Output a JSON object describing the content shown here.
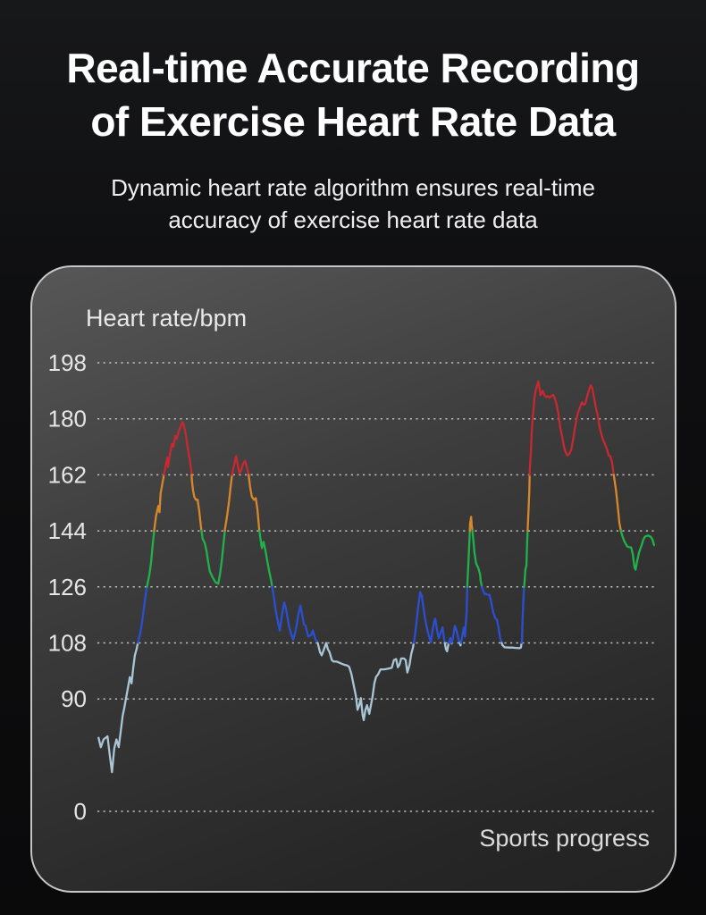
{
  "hero": {
    "title_line1": "Real-time Accurate Recording",
    "title_line2": "of Exercise Heart Rate Data",
    "subtitle_line1": "Dynamic heart rate algorithm ensures real-time",
    "subtitle_line2": "accuracy of exercise heart rate data"
  },
  "panel": {
    "y_axis_label": "Heart rate/bpm",
    "x_axis_label": "Sports progress",
    "border_color": "#d6d6d6",
    "gridline_color": "#d8d8d8",
    "tick_color": "#e6e6e6",
    "background_top": "#575757",
    "background_bottom": "#222222"
  },
  "chart_data": {
    "type": "line",
    "title": "Heart rate/bpm",
    "xlabel": "Sports progress",
    "ylabel": "Heart rate/bpm",
    "series_name": "exercise-heart-rate",
    "grid": "dotted-horizontal",
    "legend": "none",
    "y_ticks": [
      198,
      180,
      162,
      144,
      126,
      108,
      90,
      0
    ],
    "y_axis_break_between": [
      90,
      0
    ],
    "x_range_percent": [
      0,
      100
    ],
    "zones": [
      {
        "label": "below 108 bpm",
        "max": 108,
        "color": "#a9c6d6"
      },
      {
        "label": "108-126 bpm",
        "max": 126,
        "color": "#2c4fd2"
      },
      {
        "label": "126-144 bpm",
        "max": 144,
        "color": "#20b24b"
      },
      {
        "label": "144-162 bpm",
        "max": 162,
        "color": "#d8872a"
      },
      {
        "label": "above 162 bpm",
        "max": null,
        "color": "#c8282f"
      }
    ],
    "points": [
      [
        0.2,
        77.5
      ],
      [
        0.6,
        74.5
      ],
      [
        1.1,
        77
      ],
      [
        1.8,
        78
      ],
      [
        2.2,
        72
      ],
      [
        2.6,
        66.5
      ],
      [
        3.0,
        74
      ],
      [
        3.4,
        77
      ],
      [
        3.8,
        74.5
      ],
      [
        4.2,
        80
      ],
      [
        4.5,
        84.5
      ],
      [
        4.8,
        87
      ],
      [
        5.1,
        90
      ],
      [
        5.4,
        93
      ],
      [
        5.8,
        97
      ],
      [
        6.1,
        95
      ],
      [
        6.4,
        100
      ],
      [
        6.7,
        104
      ],
      [
        7.0,
        106
      ],
      [
        7.3,
        108.5
      ],
      [
        7.7,
        111.5
      ],
      [
        8.0,
        115
      ],
      [
        8.3,
        119
      ],
      [
        8.6,
        123
      ],
      [
        8.9,
        126.5
      ],
      [
        9.3,
        130
      ],
      [
        9.6,
        134
      ],
      [
        9.9,
        140
      ],
      [
        10.2,
        145
      ],
      [
        10.5,
        149
      ],
      [
        10.9,
        152
      ],
      [
        11.1,
        150
      ],
      [
        11.3,
        156
      ],
      [
        11.7,
        160
      ],
      [
        12.0,
        163
      ],
      [
        12.3,
        166
      ],
      [
        12.5,
        167.5
      ],
      [
        12.6,
        164.5
      ],
      [
        12.9,
        168
      ],
      [
        13.3,
        172
      ],
      [
        13.6,
        171
      ],
      [
        13.9,
        174.5
      ],
      [
        14.2,
        173.5
      ],
      [
        14.5,
        176
      ],
      [
        14.9,
        177.5
      ],
      [
        15.2,
        179
      ],
      [
        15.5,
        177.5
      ],
      [
        15.8,
        175
      ],
      [
        16.1,
        171
      ],
      [
        16.5,
        167
      ],
      [
        16.8,
        163
      ],
      [
        16.9,
        160
      ],
      [
        17.1,
        157
      ],
      [
        17.3,
        155
      ],
      [
        17.6,
        154
      ],
      [
        17.9,
        154
      ],
      [
        18.2,
        150.5
      ],
      [
        18.5,
        145.5
      ],
      [
        18.8,
        141.5
      ],
      [
        19.2,
        140
      ],
      [
        19.5,
        137.5
      ],
      [
        19.8,
        134
      ],
      [
        20.1,
        131
      ],
      [
        20.6,
        129
      ],
      [
        21.1,
        127.5
      ],
      [
        21.6,
        127
      ],
      [
        21.9,
        130
      ],
      [
        22.2,
        134
      ],
      [
        22.5,
        139
      ],
      [
        22.8,
        144.5
      ],
      [
        23.2,
        149
      ],
      [
        23.5,
        153
      ],
      [
        23.8,
        158
      ],
      [
        24.1,
        162.5
      ],
      [
        24.3,
        164
      ],
      [
        24.6,
        166.5
      ],
      [
        24.8,
        168
      ],
      [
        25.1,
        165
      ],
      [
        25.4,
        162.5
      ],
      [
        25.7,
        163.5
      ],
      [
        26.0,
        165.5
      ],
      [
        26.4,
        166.5
      ],
      [
        26.7,
        164.5
      ],
      [
        27.0,
        162.5
      ],
      [
        27.3,
        158
      ],
      [
        27.6,
        155
      ],
      [
        28.0,
        154
      ],
      [
        28.3,
        154.5
      ],
      [
        28.6,
        151
      ],
      [
        28.9,
        145
      ],
      [
        29.1,
        142
      ],
      [
        29.4,
        138.5
      ],
      [
        29.7,
        140.5
      ],
      [
        30.0,
        138
      ],
      [
        30.4,
        134
      ],
      [
        30.7,
        131
      ],
      [
        31.0,
        128.5
      ],
      [
        31.3,
        125.5
      ],
      [
        31.6,
        122
      ],
      [
        31.9,
        118
      ],
      [
        32.3,
        114.5
      ],
      [
        32.6,
        112
      ],
      [
        32.9,
        116
      ],
      [
        33.2,
        119
      ],
      [
        33.4,
        121
      ],
      [
        33.7,
        119
      ],
      [
        34.0,
        116
      ],
      [
        34.3,
        113
      ],
      [
        34.7,
        110.5
      ],
      [
        35.0,
        109
      ],
      [
        35.3,
        111
      ],
      [
        35.6,
        113.5
      ],
      [
        35.9,
        117
      ],
      [
        36.3,
        120
      ],
      [
        36.6,
        117
      ],
      [
        36.9,
        114
      ],
      [
        37.2,
        113.5
      ],
      [
        37.7,
        110
      ],
      [
        38.2,
        110.5
      ],
      [
        38.5,
        112
      ],
      [
        39.0,
        109
      ],
      [
        39.3,
        108.5
      ],
      [
        39.8,
        105
      ],
      [
        40.1,
        104
      ],
      [
        40.6,
        106.5
      ],
      [
        40.9,
        108
      ],
      [
        41.2,
        106
      ],
      [
        41.5,
        105
      ],
      [
        41.9,
        102.5
      ],
      [
        42.2,
        102
      ],
      [
        42.8,
        102
      ],
      [
        43.4,
        101.5
      ],
      [
        44.1,
        101
      ],
      [
        44.7,
        100.7
      ],
      [
        45.0,
        100.3
      ],
      [
        45.4,
        98
      ],
      [
        45.8,
        94.5
      ],
      [
        46.2,
        91
      ],
      [
        46.5,
        86.5
      ],
      [
        46.8,
        88
      ],
      [
        47.1,
        90.3
      ],
      [
        47.4,
        85
      ],
      [
        47.6,
        83.2
      ],
      [
        47.9,
        86.5
      ],
      [
        48.2,
        88
      ],
      [
        48.6,
        85.2
      ],
      [
        48.9,
        88
      ],
      [
        49.2,
        91
      ],
      [
        49.5,
        95
      ],
      [
        49.8,
        97
      ],
      [
        50.2,
        98
      ],
      [
        50.6,
        99.5
      ],
      [
        51.3,
        99.5
      ],
      [
        51.9,
        99.7
      ],
      [
        52.6,
        100
      ],
      [
        53.0,
        102.5
      ],
      [
        53.4,
        102.8
      ],
      [
        53.7,
        100.2
      ],
      [
        54.0,
        101
      ],
      [
        54.3,
        103
      ],
      [
        54.8,
        103
      ],
      [
        55.1,
        102.5
      ],
      [
        55.4,
        98.5
      ],
      [
        55.8,
        101
      ],
      [
        56.1,
        104.5
      ],
      [
        56.4,
        106.5
      ],
      [
        56.7,
        109.5
      ],
      [
        57.0,
        114
      ],
      [
        57.3,
        119
      ],
      [
        57.7,
        124.3
      ],
      [
        58.0,
        123
      ],
      [
        58.3,
        119
      ],
      [
        58.6,
        115.5
      ],
      [
        59.0,
        112
      ],
      [
        59.3,
        110
      ],
      [
        59.6,
        108.2
      ],
      [
        59.9,
        112
      ],
      [
        60.2,
        115
      ],
      [
        60.4,
        115.8
      ],
      [
        60.7,
        112
      ],
      [
        61.0,
        109.5
      ],
      [
        61.3,
        111
      ],
      [
        61.7,
        113
      ],
      [
        62.0,
        109
      ],
      [
        62.3,
        106
      ],
      [
        62.5,
        105.3
      ],
      [
        62.8,
        108
      ],
      [
        63.1,
        109.6
      ],
      [
        63.3,
        107.8
      ],
      [
        63.6,
        110
      ],
      [
        63.9,
        113.5
      ],
      [
        64.2,
        112
      ],
      [
        64.5,
        109.5
      ],
      [
        64.9,
        107.2
      ],
      [
        65.2,
        110
      ],
      [
        65.5,
        113
      ],
      [
        65.7,
        110
      ],
      [
        65.8,
        113
      ],
      [
        66.0,
        118
      ],
      [
        66.1,
        126
      ],
      [
        66.3,
        133
      ],
      [
        66.5,
        141
      ],
      [
        66.6,
        146
      ],
      [
        66.8,
        148.5
      ],
      [
        66.9,
        146
      ],
      [
        67.1,
        143
      ],
      [
        67.3,
        139
      ],
      [
        67.4,
        137
      ],
      [
        67.7,
        133.5
      ],
      [
        68.1,
        132
      ],
      [
        68.4,
        130
      ],
      [
        68.5,
        128
      ],
      [
        68.8,
        125.5
      ],
      [
        69.2,
        123.8
      ],
      [
        69.6,
        123.6
      ],
      [
        70.1,
        123.4
      ],
      [
        70.4,
        121
      ],
      [
        70.8,
        117.5
      ],
      [
        71.1,
        116
      ],
      [
        71.4,
        115.5
      ],
      [
        71.7,
        113
      ],
      [
        72.0,
        109.5
      ],
      [
        72.4,
        107.3
      ],
      [
        72.8,
        106.6
      ],
      [
        73.5,
        106.5
      ],
      [
        74.1,
        106.5
      ],
      [
        74.8,
        106.4
      ],
      [
        75.4,
        106.3
      ],
      [
        75.7,
        106.5
      ],
      [
        75.9,
        109
      ],
      [
        76.0,
        116
      ],
      [
        76.2,
        124
      ],
      [
        76.4,
        129
      ],
      [
        76.5,
        131.5
      ],
      [
        76.7,
        133
      ],
      [
        76.8,
        140
      ],
      [
        77.0,
        148
      ],
      [
        77.2,
        157
      ],
      [
        77.3,
        164
      ],
      [
        77.5,
        170
      ],
      [
        77.6,
        175
      ],
      [
        77.8,
        180
      ],
      [
        78.0,
        184
      ],
      [
        78.1,
        186.5
      ],
      [
        78.4,
        189.5
      ],
      [
        78.8,
        192
      ],
      [
        78.9,
        191
      ],
      [
        79.1,
        189
      ],
      [
        79.2,
        187.6
      ],
      [
        79.6,
        189
      ],
      [
        79.9,
        187.5
      ],
      [
        80.2,
        187
      ],
      [
        80.5,
        187.3
      ],
      [
        80.8,
        186.8
      ],
      [
        81.2,
        187.4
      ],
      [
        81.5,
        187.7
      ],
      [
        81.8,
        186.3
      ],
      [
        82.1,
        184.5
      ],
      [
        82.4,
        181.5
      ],
      [
        82.7,
        177.5
      ],
      [
        83.1,
        174
      ],
      [
        83.4,
        171
      ],
      [
        83.7,
        169.2
      ],
      [
        84.0,
        168.3
      ],
      [
        84.3,
        168.6
      ],
      [
        84.7,
        170
      ],
      [
        85.0,
        173
      ],
      [
        85.3,
        176.5
      ],
      [
        85.6,
        179.5
      ],
      [
        85.9,
        182
      ],
      [
        86.3,
        183.8
      ],
      [
        86.6,
        185.3
      ],
      [
        86.9,
        184.5
      ],
      [
        87.2,
        184.8
      ],
      [
        87.5,
        187
      ],
      [
        87.9,
        189.5
      ],
      [
        88.2,
        190.8
      ],
      [
        88.5,
        189.5
      ],
      [
        88.8,
        186.5
      ],
      [
        89.1,
        183.5
      ],
      [
        89.5,
        180.5
      ],
      [
        89.8,
        177
      ],
      [
        90.1,
        175
      ],
      [
        90.4,
        173.2
      ],
      [
        90.7,
        172
      ],
      [
        91.1,
        170
      ],
      [
        91.4,
        168.2
      ],
      [
        91.7,
        167.9
      ],
      [
        92.0,
        166
      ],
      [
        92.3,
        162
      ],
      [
        92.7,
        157
      ],
      [
        93.0,
        152
      ],
      [
        93.3,
        146.5
      ],
      [
        93.6,
        143.8
      ],
      [
        93.9,
        142
      ],
      [
        94.2,
        140.6
      ],
      [
        94.7,
        139
      ],
      [
        95.0,
        138.8
      ],
      [
        95.4,
        138.7
      ],
      [
        95.7,
        136.5
      ],
      [
        96.0,
        132.3
      ],
      [
        96.2,
        131.5
      ],
      [
        96.5,
        134.5
      ],
      [
        96.8,
        137
      ],
      [
        97.3,
        139.5
      ],
      [
        97.6,
        141.3
      ],
      [
        97.9,
        142.2
      ],
      [
        98.4,
        142.5
      ],
      [
        98.9,
        142.1
      ],
      [
        99.2,
        141.3
      ],
      [
        99.5,
        139.4
      ]
    ]
  }
}
